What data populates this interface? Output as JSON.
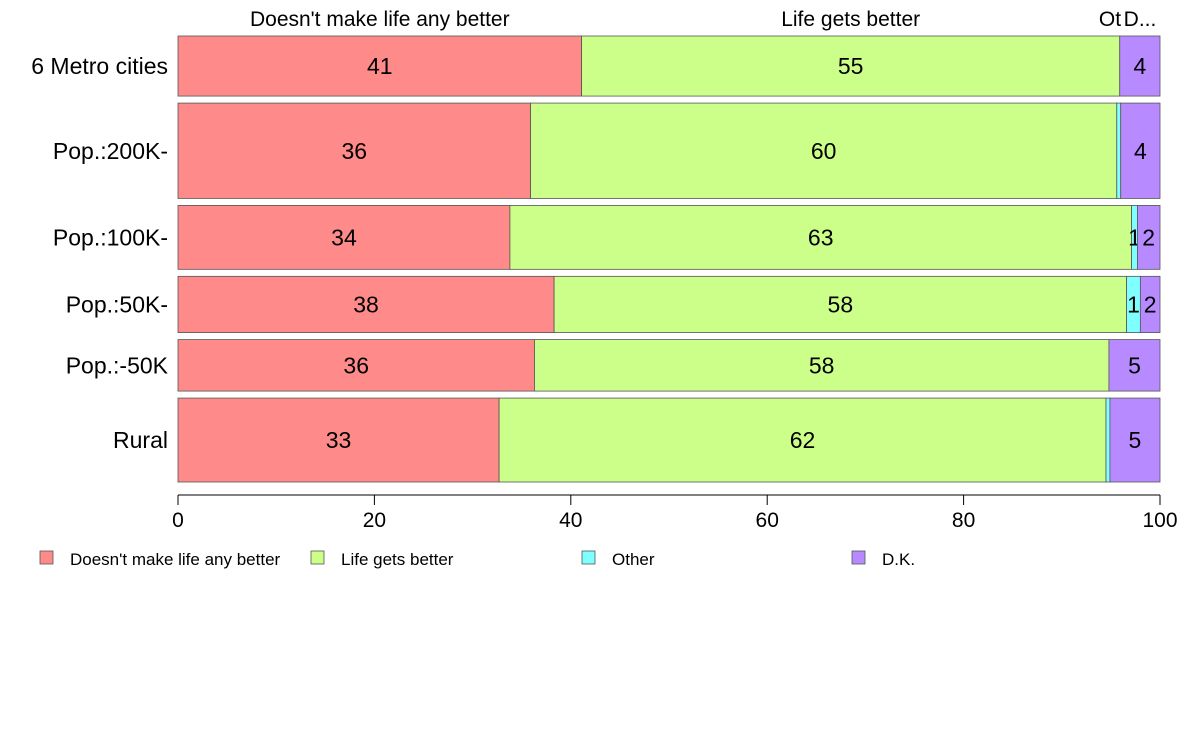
{
  "chart_data": {
    "type": "bar",
    "orientation": "horizontal",
    "stacked": true,
    "categories": [
      "6 Metro cities",
      "Pop.:200K-",
      "Pop.:100K-",
      "Pop.:50K-",
      "Pop.:-50K",
      "Rural"
    ],
    "category_weights": [
      0.63,
      1.0,
      0.67,
      0.59,
      0.54,
      0.88
    ],
    "series": [
      {
        "name": "Doesn't make life any better",
        "color": "#ff8a8a",
        "values": [
          41.1,
          35.9,
          33.8,
          38.3,
          36.3,
          32.7
        ],
        "labels": [
          "41",
          "36",
          "34",
          "38",
          "36",
          "33"
        ]
      },
      {
        "name": "Life gets better",
        "color": "#ccff8a",
        "values": [
          54.8,
          59.7,
          63.3,
          58.3,
          58.5,
          61.8
        ],
        "labels": [
          "55",
          "60",
          "63",
          "58",
          "58",
          "62"
        ]
      },
      {
        "name": "Other",
        "color": "#80ffff",
        "values": [
          0.0,
          0.4,
          0.6,
          1.4,
          0.0,
          0.4
        ],
        "labels": [
          "",
          "",
          "1",
          "1",
          "",
          ""
        ]
      },
      {
        "name": "D.K.",
        "color": "#b88aff",
        "values": [
          4.1,
          4.0,
          2.3,
          2.0,
          5.2,
          5.1
        ],
        "labels": [
          "4",
          "4",
          "2",
          "2",
          "5",
          "5"
        ]
      }
    ],
    "top_labels": [
      "Doesn't make life any better",
      "Life gets better",
      "Ot",
      "D..."
    ],
    "x_ticks": [
      0,
      20,
      40,
      60,
      80,
      100
    ],
    "xlim": [
      0,
      100
    ],
    "legend_position": "bottom",
    "grid": false
  }
}
